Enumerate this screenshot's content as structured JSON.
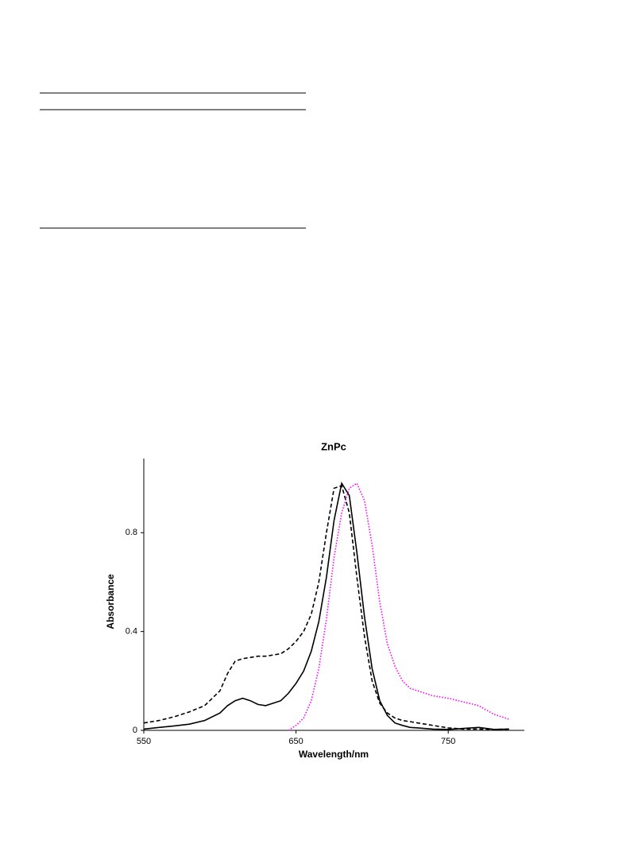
{
  "chart_data": {
    "type": "line",
    "title": "ZnPc",
    "x_label": "Wavelength/nm",
    "y_label": "Absorbance",
    "xlim": [
      550,
      800
    ],
    "xticks": [
      550,
      650,
      750
    ],
    "ylim": [
      0,
      1.1
    ],
    "yticks": [
      0,
      0.4,
      0.8
    ],
    "x": [
      550,
      560,
      570,
      580,
      590,
      600,
      605,
      610,
      615,
      620,
      625,
      630,
      640,
      645,
      650,
      655,
      660,
      665,
      670,
      675,
      680,
      685,
      690,
      695,
      700,
      705,
      710,
      715,
      720,
      725,
      730,
      740,
      750,
      760,
      770,
      780,
      790
    ],
    "series": [
      {
        "color": "#000000",
        "dash": "solid",
        "values": [
          0.005,
          0.012,
          0.018,
          0.025,
          0.04,
          0.07,
          0.1,
          0.12,
          0.13,
          0.12,
          0.105,
          0.1,
          0.12,
          0.15,
          0.19,
          0.24,
          0.32,
          0.44,
          0.62,
          0.85,
          1.0,
          0.95,
          0.72,
          0.46,
          0.25,
          0.12,
          0.06,
          0.03,
          0.02,
          0.012,
          0.01,
          0.005,
          0.004,
          0.008,
          0.012,
          0.004,
          0.005
        ]
      },
      {
        "color": "#000000",
        "dash": "dashed",
        "values": [
          0.03,
          0.04,
          0.055,
          0.075,
          0.1,
          0.16,
          0.23,
          0.28,
          0.29,
          0.295,
          0.3,
          0.3,
          0.31,
          0.33,
          0.36,
          0.4,
          0.47,
          0.6,
          0.8,
          0.98,
          0.99,
          0.88,
          0.62,
          0.38,
          0.2,
          0.11,
          0.07,
          0.05,
          0.04,
          0.035,
          0.03,
          0.02,
          0.01,
          0.005,
          0.005,
          0.004,
          0.005
        ]
      },
      {
        "color": "#ff00ff",
        "dash": "dotted",
        "values": [
          null,
          null,
          null,
          null,
          null,
          null,
          null,
          null,
          null,
          null,
          null,
          null,
          null,
          0,
          0.02,
          0.05,
          0.12,
          0.25,
          0.45,
          0.7,
          0.88,
          0.98,
          1.0,
          0.93,
          0.75,
          0.52,
          0.35,
          0.26,
          0.2,
          0.17,
          0.16,
          0.14,
          0.13,
          0.115,
          0.1,
          0.065,
          0.045
        ]
      }
    ]
  }
}
